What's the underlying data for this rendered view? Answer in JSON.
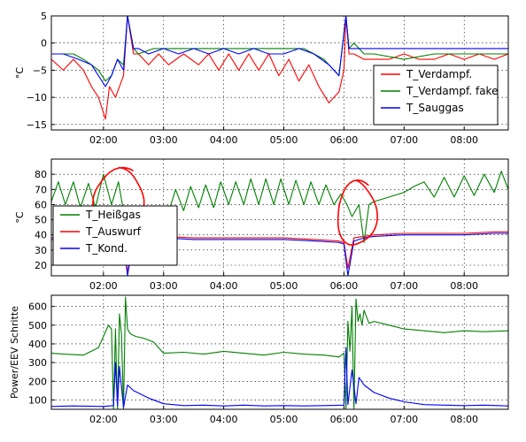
{
  "chart_data": [
    {
      "type": "line",
      "ylabel": "°C",
      "xlim": [
        "01:08",
        "08:44"
      ],
      "ylim": [
        -16,
        5
      ],
      "yticks": [
        -15,
        -10,
        -5,
        0,
        5
      ],
      "xticks": [
        "02:00",
        "03:00",
        "04:00",
        "05:00",
        "06:00",
        "07:00",
        "08:00"
      ],
      "grid": true,
      "legend_position": "bottom-right",
      "series": [
        {
          "name": "T_Verdampf.",
          "color": "#ff0000",
          "x": [
            "01:08",
            "01:20",
            "01:30",
            "01:40",
            "01:48",
            "01:55",
            "02:02",
            "02:06",
            "02:12",
            "02:20",
            "02:24",
            "02:30",
            "02:35",
            "02:45",
            "02:55",
            "03:05",
            "03:20",
            "03:35",
            "03:45",
            "03:55",
            "04:05",
            "04:15",
            "04:25",
            "04:35",
            "04:45",
            "04:55",
            "05:05",
            "05:15",
            "05:25",
            "05:35",
            "05:45",
            "05:55",
            "06:00",
            "06:02",
            "06:05",
            "06:10",
            "06:20",
            "06:30",
            "06:45",
            "07:00",
            "07:15",
            "07:30",
            "07:45",
            "08:00",
            "08:15",
            "08:30",
            "08:44"
          ],
          "y": [
            -3,
            -5,
            -3,
            -5,
            -8,
            -10,
            -14,
            -8,
            -10,
            -6,
            5,
            -2,
            -2,
            -4,
            -2,
            -4,
            -2,
            -4,
            -2,
            -5,
            -2,
            -5,
            -2,
            -5,
            -2,
            -6,
            -3,
            -7,
            -4,
            -8,
            -11,
            -9,
            -5,
            5,
            -2,
            -2,
            -3,
            -3,
            -3,
            -2,
            -3,
            -3,
            -2,
            -3,
            -2,
            -3,
            -2
          ]
        },
        {
          "name": "T_Verdampf. fake",
          "color": "#008000",
          "x": [
            "01:08",
            "01:20",
            "01:30",
            "01:40",
            "01:48",
            "01:55",
            "02:02",
            "02:08",
            "02:14",
            "02:20",
            "02:24",
            "02:30",
            "02:35",
            "02:50",
            "03:20",
            "03:50",
            "04:20",
            "04:50",
            "05:20",
            "05:40",
            "05:55",
            "06:02",
            "06:05",
            "06:10",
            "06:20",
            "06:30",
            "07:00",
            "07:30",
            "08:00",
            "08:30",
            "08:44"
          ],
          "y": [
            -2,
            -2,
            -2,
            -3,
            -4,
            -5,
            -7,
            -6,
            -3,
            -4,
            5,
            -1,
            -2,
            -1,
            -1,
            -1,
            -1,
            -1,
            -1,
            -3,
            -6,
            5,
            -1,
            0,
            -2,
            -2,
            -3,
            -2,
            -2,
            -2,
            -2
          ]
        },
        {
          "name": "T_Sauggas",
          "color": "#0000ff",
          "x": [
            "01:08",
            "01:20",
            "01:35",
            "01:48",
            "01:55",
            "02:02",
            "02:08",
            "02:14",
            "02:20",
            "02:24",
            "02:30",
            "02:35",
            "02:45",
            "03:00",
            "03:15",
            "03:30",
            "03:45",
            "04:00",
            "04:15",
            "04:30",
            "04:45",
            "05:00",
            "05:15",
            "05:30",
            "05:45",
            "05:55",
            "06:02",
            "06:05",
            "06:10",
            "06:20",
            "06:40",
            "07:00",
            "07:20",
            "07:40",
            "08:00",
            "08:20",
            "08:44"
          ],
          "y": [
            -2,
            -2,
            -3,
            -4,
            -6,
            -8,
            -6,
            -3,
            -5,
            5,
            -1,
            -1,
            -2,
            -1,
            -2,
            -1,
            -2,
            -1,
            -2,
            -1,
            -2,
            -2,
            -1,
            -2,
            -4,
            -6,
            5,
            -1,
            -1,
            -1,
            -1,
            -1,
            -1,
            -1,
            -1,
            -1,
            -1
          ]
        }
      ]
    },
    {
      "type": "line",
      "ylabel": "°C",
      "xlim": [
        "01:08",
        "08:44"
      ],
      "ylim": [
        13,
        90
      ],
      "yticks": [
        20,
        30,
        40,
        50,
        60,
        70,
        80
      ],
      "xticks": [
        "02:00",
        "03:00",
        "04:00",
        "05:00",
        "06:00",
        "07:00",
        "08:00"
      ],
      "grid": true,
      "legend_position": "bottom-left",
      "series": [
        {
          "name": "T_Heißgas",
          "color": "#008000",
          "x": [
            "01:08",
            "01:15",
            "01:22",
            "01:30",
            "01:37",
            "01:45",
            "01:52",
            "02:00",
            "02:08",
            "02:15",
            "02:22",
            "02:28",
            "02:35",
            "02:45",
            "02:55",
            "03:05",
            "03:12",
            "03:20",
            "03:27",
            "03:35",
            "03:42",
            "03:50",
            "03:57",
            "04:05",
            "04:12",
            "04:20",
            "04:27",
            "04:35",
            "04:42",
            "04:50",
            "04:57",
            "05:05",
            "05:12",
            "05:20",
            "05:27",
            "05:35",
            "05:42",
            "05:50",
            "05:57",
            "06:03",
            "06:08",
            "06:15",
            "06:20",
            "06:25",
            "06:30",
            "06:40",
            "06:50",
            "07:00",
            "07:10",
            "07:20",
            "07:30",
            "07:40",
            "07:50",
            "08:00",
            "08:10",
            "08:20",
            "08:30",
            "08:37",
            "08:44"
          ],
          "y": [
            62,
            75,
            60,
            75,
            58,
            74,
            58,
            80,
            60,
            75,
            48,
            58,
            52,
            51,
            52,
            55,
            70,
            56,
            72,
            58,
            73,
            58,
            75,
            60,
            75,
            60,
            77,
            60,
            77,
            60,
            77,
            60,
            76,
            60,
            75,
            60,
            73,
            60,
            67,
            60,
            52,
            60,
            35,
            60,
            62,
            64,
            66,
            68,
            72,
            75,
            65,
            78,
            65,
            79,
            66,
            80,
            68,
            82,
            70
          ]
        },
        {
          "name": "T_Auswurf",
          "color": "#ff0000",
          "x": [
            "01:08",
            "01:30",
            "02:00",
            "02:20",
            "02:24",
            "02:30",
            "03:00",
            "03:30",
            "04:00",
            "04:30",
            "05:00",
            "05:30",
            "05:55",
            "06:00",
            "06:04",
            "06:10",
            "06:20",
            "06:30",
            "07:00",
            "07:30",
            "08:00",
            "08:30",
            "08:44"
          ],
          "y": [
            38,
            38,
            38,
            37,
            15,
            39,
            39,
            38,
            38,
            38,
            38,
            37,
            36,
            35,
            18,
            38,
            39,
            40,
            41,
            41,
            41,
            42,
            42
          ]
        },
        {
          "name": "T_Kond.",
          "color": "#0000ff",
          "x": [
            "01:08",
            "01:30",
            "02:00",
            "02:20",
            "02:24",
            "02:30",
            "03:00",
            "03:30",
            "04:00",
            "04:30",
            "05:00",
            "05:30",
            "05:55",
            "06:00",
            "06:04",
            "06:10",
            "06:20",
            "06:30",
            "07:00",
            "07:30",
            "08:00",
            "08:30",
            "08:44"
          ],
          "y": [
            37,
            37,
            37,
            36,
            13,
            38,
            38,
            37,
            37,
            37,
            37,
            36,
            35,
            34,
            13,
            36,
            38,
            39,
            40,
            40,
            40,
            41,
            41
          ]
        }
      ],
      "annotations": [
        {
          "shape": "freehand-ellipse",
          "color": "#ff0000",
          "x_range": [
            "01:50",
            "02:40"
          ],
          "y_range": [
            47,
            83
          ]
        },
        {
          "shape": "freehand-ellipse",
          "color": "#ff0000",
          "x_range": [
            "05:53",
            "06:32"
          ],
          "y_range": [
            33,
            75
          ]
        }
      ]
    },
    {
      "type": "line",
      "ylabel": "Power/EEV Schritte",
      "xlim": [
        "01:08",
        "08:44"
      ],
      "ylim": [
        50,
        660
      ],
      "yticks": [
        100,
        200,
        300,
        400,
        500,
        600
      ],
      "xticks": [
        "02:00",
        "03:00",
        "04:00",
        "05:00",
        "06:00",
        "07:00",
        "08:00"
      ],
      "grid": true,
      "series": [
        {
          "color": "#008000",
          "x": [
            "01:08",
            "01:20",
            "01:40",
            "01:55",
            "02:05",
            "02:08",
            "02:10",
            "02:12",
            "02:14",
            "02:16",
            "02:18",
            "02:20",
            "02:22",
            "02:24",
            "02:26",
            "02:28",
            "02:32",
            "02:40",
            "02:50",
            "03:00",
            "03:20",
            "03:40",
            "04:00",
            "04:20",
            "04:40",
            "05:00",
            "05:20",
            "05:40",
            "05:55",
            "06:00",
            "06:02",
            "06:04",
            "06:06",
            "06:08",
            "06:10",
            "06:12",
            "06:14",
            "06:16",
            "06:18",
            "06:20",
            "06:25",
            "06:30",
            "06:45",
            "07:00",
            "07:20",
            "07:40",
            "08:00",
            "08:20",
            "08:44"
          ],
          "y": [
            350,
            345,
            340,
            380,
            500,
            480,
            50,
            480,
            50,
            560,
            450,
            50,
            650,
            480,
            460,
            450,
            440,
            430,
            410,
            350,
            355,
            345,
            360,
            350,
            340,
            355,
            345,
            340,
            330,
            350,
            50,
            520,
            360,
            600,
            50,
            640,
            520,
            560,
            500,
            580,
            510,
            520,
            500,
            480,
            470,
            460,
            470,
            465,
            470
          ]
        },
        {
          "color": "#0000ff",
          "x": [
            "01:08",
            "01:30",
            "02:00",
            "02:10",
            "02:12",
            "02:14",
            "02:16",
            "02:20",
            "02:24",
            "02:30",
            "02:45",
            "03:00",
            "03:20",
            "03:40",
            "04:00",
            "04:20",
            "04:40",
            "05:00",
            "05:20",
            "05:40",
            "06:00",
            "06:02",
            "06:04",
            "06:08",
            "06:12",
            "06:15",
            "06:20",
            "06:30",
            "06:45",
            "07:00",
            "07:20",
            "07:40",
            "08:00",
            "08:20",
            "08:44"
          ],
          "y": [
            65,
            68,
            65,
            70,
            300,
            70,
            280,
            60,
            180,
            150,
            110,
            80,
            70,
            72,
            68,
            72,
            68,
            70,
            68,
            70,
            72,
            380,
            75,
            260,
            80,
            220,
            180,
            140,
            110,
            90,
            75,
            72,
            70,
            72,
            68
          ]
        }
      ]
    }
  ]
}
